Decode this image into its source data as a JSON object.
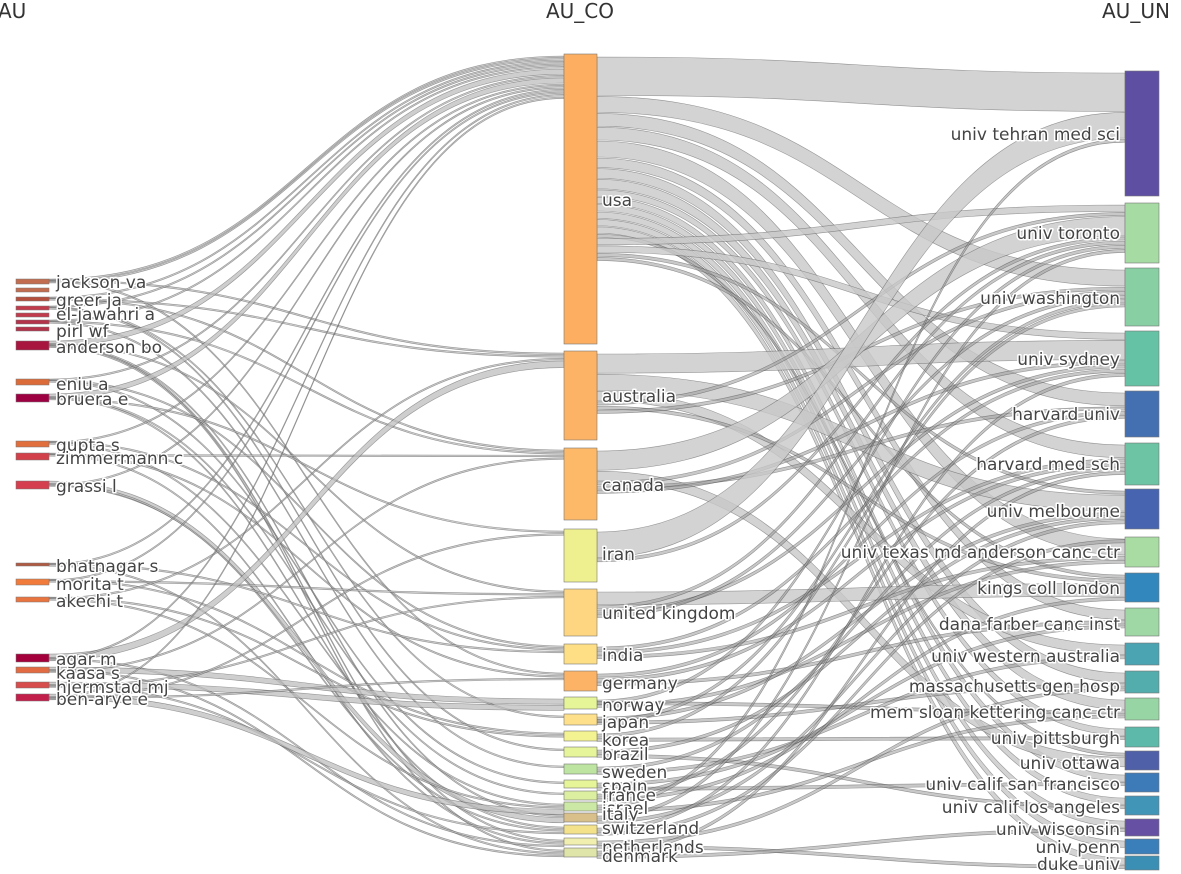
{
  "columns": {
    "au": "AU",
    "au_co": "AU_CO",
    "au_un": "AU_UN"
  },
  "nodes": {
    "au": [
      {
        "label": "jackson va",
        "color": "#c26d4f"
      },
      {
        "label": "greer ja",
        "color": "#b5503f"
      },
      {
        "label": "el-jawahri a",
        "color": "#c23b4d"
      },
      {
        "label": "pirl wf",
        "color": "#b4324a"
      },
      {
        "label": "anderson bo",
        "color": "#a8153f"
      },
      {
        "label": "eniu a",
        "color": "#dc6b3a"
      },
      {
        "label": "bruera e",
        "color": "#9e0142"
      },
      {
        "label": "gupta s",
        "color": "#e06f3d"
      },
      {
        "label": "zimmermann c",
        "color": "#d2404a"
      },
      {
        "label": "grassi l",
        "color": "#d53e4f"
      },
      {
        "label": "bhatnagar s",
        "color": "#b05a42"
      },
      {
        "label": "morita t",
        "color": "#f07b3a"
      },
      {
        "label": "akechi t",
        "color": "#e87540"
      },
      {
        "label": "agar m",
        "color": "#a3003c"
      },
      {
        "label": "kaasa s",
        "color": "#e36b44"
      },
      {
        "label": "hjermstad mj",
        "color": "#d74c4c"
      },
      {
        "label": "ben-arye e",
        "color": "#c21f4b"
      }
    ],
    "au_co": [
      {
        "label": "usa",
        "color": "#fdae61"
      },
      {
        "label": "australia",
        "color": "#fdb365"
      },
      {
        "label": "canada",
        "color": "#fdb968"
      },
      {
        "label": "iran",
        "color": "#eef08f"
      },
      {
        "label": "united kingdom",
        "color": "#fed681"
      },
      {
        "label": "india",
        "color": "#fedf86"
      },
      {
        "label": "germany",
        "color": "#fdb365"
      },
      {
        "label": "norway",
        "color": "#e6f598"
      },
      {
        "label": "japan",
        "color": "#fee08b"
      },
      {
        "label": "korea",
        "color": "#f4f391"
      },
      {
        "label": "brazil",
        "color": "#e6f49a"
      },
      {
        "label": "sweden",
        "color": "#bde4a0"
      },
      {
        "label": "spain",
        "color": "#e6f598"
      },
      {
        "label": "france",
        "color": "#dceea0"
      },
      {
        "label": "israel",
        "color": "#cbe8a4"
      },
      {
        "label": "italy",
        "color": "#d9c08a"
      },
      {
        "label": "switzerland",
        "color": "#f4e28a"
      },
      {
        "label": "netherlands",
        "color": "#f0efb0"
      },
      {
        "label": "denmark",
        "color": "#dfe4a8"
      }
    ],
    "au_un": [
      {
        "label": "univ tehran med sci",
        "color": "#5e4fa2"
      },
      {
        "label": "univ toronto",
        "color": "#a6dba4"
      },
      {
        "label": "univ washington",
        "color": "#88cfa4"
      },
      {
        "label": "univ sydney",
        "color": "#66c2a5"
      },
      {
        "label": "harvard univ",
        "color": "#4470b1"
      },
      {
        "label": "harvard med sch",
        "color": "#6cc4a4"
      },
      {
        "label": "univ melbourne",
        "color": "#4764b0"
      },
      {
        "label": "univ texas md anderson canc ctr",
        "color": "#a8dca2"
      },
      {
        "label": "kings coll london",
        "color": "#3288bd"
      },
      {
        "label": "dana farber canc inst",
        "color": "#9fd8a4"
      },
      {
        "label": "univ western australia",
        "color": "#4aa4b2"
      },
      {
        "label": "massachusetts gen hosp",
        "color": "#53adad"
      },
      {
        "label": "mem sloan kettering canc ctr",
        "color": "#98d5a4"
      },
      {
        "label": "univ pittsburgh",
        "color": "#5db9a9"
      },
      {
        "label": "univ ottawa",
        "color": "#4f5fa8"
      },
      {
        "label": "univ calif san francisco",
        "color": "#3c7ab8"
      },
      {
        "label": "univ calif los angeles",
        "color": "#4196b8"
      },
      {
        "label": "univ wisconsin",
        "color": "#6650a3"
      },
      {
        "label": "univ penn",
        "color": "#3b7fba"
      },
      {
        "label": "duke univ",
        "color": "#3b8fb5"
      }
    ]
  },
  "links_left": [
    [
      0,
      0,
      1
    ],
    [
      0,
      1,
      1
    ],
    [
      0,
      6,
      1
    ],
    [
      0,
      0,
      1
    ],
    [
      1,
      0,
      1
    ],
    [
      1,
      2,
      1
    ],
    [
      1,
      1,
      1
    ],
    [
      2,
      0,
      1
    ],
    [
      2,
      8,
      1
    ],
    [
      2,
      10,
      1
    ],
    [
      3,
      0,
      1
    ],
    [
      3,
      2,
      1
    ],
    [
      3,
      11,
      1
    ],
    [
      4,
      0,
      2
    ],
    [
      4,
      4,
      1
    ],
    [
      4,
      15,
      1
    ],
    [
      4,
      17,
      1
    ],
    [
      4,
      18,
      1
    ],
    [
      5,
      0,
      1
    ],
    [
      5,
      5,
      1
    ],
    [
      5,
      12,
      1
    ],
    [
      6,
      0,
      2
    ],
    [
      6,
      13,
      1
    ],
    [
      6,
      16,
      1
    ],
    [
      6,
      3,
      1
    ],
    [
      7,
      5,
      1
    ],
    [
      7,
      0,
      1
    ],
    [
      7,
      14,
      1
    ],
    [
      8,
      6,
      1
    ],
    [
      8,
      17,
      1
    ],
    [
      8,
      2,
      1
    ],
    [
      9,
      15,
      2
    ],
    [
      9,
      16,
      1
    ],
    [
      9,
      0,
      1
    ],
    [
      10,
      5,
      1
    ],
    [
      10,
      0,
      1
    ],
    [
      10,
      18,
      1
    ],
    [
      11,
      9,
      1
    ],
    [
      11,
      0,
      1
    ],
    [
      11,
      4,
      1
    ],
    [
      12,
      9,
      1
    ],
    [
      12,
      1,
      1
    ],
    [
      12,
      14,
      1
    ],
    [
      13,
      1,
      3
    ],
    [
      13,
      0,
      1
    ],
    [
      13,
      17,
      1
    ],
    [
      14,
      7,
      2
    ],
    [
      14,
      18,
      1
    ],
    [
      14,
      2,
      1
    ],
    [
      15,
      7,
      2
    ],
    [
      15,
      16,
      1
    ],
    [
      15,
      4,
      1
    ],
    [
      16,
      14,
      2
    ],
    [
      16,
      0,
      1
    ],
    [
      16,
      6,
      1
    ],
    [
      16,
      3,
      1
    ]
  ],
  "links_right": [
    [
      0,
      0,
      12
    ],
    [
      0,
      2,
      5
    ],
    [
      0,
      4,
      4
    ],
    [
      0,
      5,
      4
    ],
    [
      0,
      7,
      5
    ],
    [
      0,
      9,
      3
    ],
    [
      0,
      11,
      3
    ],
    [
      0,
      12,
      3
    ],
    [
      0,
      13,
      2
    ],
    [
      0,
      15,
      2
    ],
    [
      0,
      16,
      2
    ],
    [
      0,
      17,
      2
    ],
    [
      0,
      18,
      2
    ],
    [
      0,
      19,
      2
    ],
    [
      0,
      14,
      1
    ],
    [
      0,
      1,
      2
    ],
    [
      0,
      3,
      2
    ],
    [
      0,
      6,
      1
    ],
    [
      0,
      8,
      1
    ],
    [
      1,
      3,
      6
    ],
    [
      1,
      6,
      5
    ],
    [
      1,
      10,
      3
    ],
    [
      1,
      1,
      1
    ],
    [
      1,
      8,
      1
    ],
    [
      1,
      2,
      1
    ],
    [
      2,
      1,
      6
    ],
    [
      2,
      14,
      3
    ],
    [
      2,
      2,
      1
    ],
    [
      2,
      4,
      1
    ],
    [
      2,
      3,
      1
    ],
    [
      3,
      0,
      8
    ],
    [
      3,
      1,
      1
    ],
    [
      4,
      8,
      4
    ],
    [
      4,
      1,
      1
    ],
    [
      4,
      3,
      1
    ],
    [
      4,
      2,
      1
    ],
    [
      5,
      3,
      1
    ],
    [
      5,
      5,
      1
    ],
    [
      5,
      7,
      1
    ],
    [
      6,
      4,
      1
    ],
    [
      6,
      5,
      1
    ],
    [
      6,
      9,
      1
    ],
    [
      7,
      1,
      1
    ],
    [
      7,
      7,
      1
    ],
    [
      7,
      12,
      1
    ],
    [
      8,
      6,
      1
    ],
    [
      8,
      11,
      1
    ],
    [
      8,
      2,
      1
    ],
    [
      9,
      2,
      1
    ],
    [
      9,
      13,
      1
    ],
    [
      10,
      6,
      1
    ],
    [
      10,
      16,
      1
    ],
    [
      11,
      5,
      1
    ],
    [
      11,
      10,
      1
    ],
    [
      12,
      9,
      1
    ],
    [
      12,
      15,
      1
    ],
    [
      13,
      4,
      1
    ],
    [
      13,
      8,
      1
    ],
    [
      14,
      0,
      1
    ],
    [
      14,
      12,
      1
    ],
    [
      15,
      1,
      1
    ],
    [
      15,
      6,
      1
    ],
    [
      16,
      3,
      1
    ],
    [
      16,
      7,
      1
    ],
    [
      17,
      11,
      1
    ],
    [
      17,
      19,
      1
    ],
    [
      18,
      5,
      1
    ],
    [
      18,
      17,
      1
    ]
  ]
}
